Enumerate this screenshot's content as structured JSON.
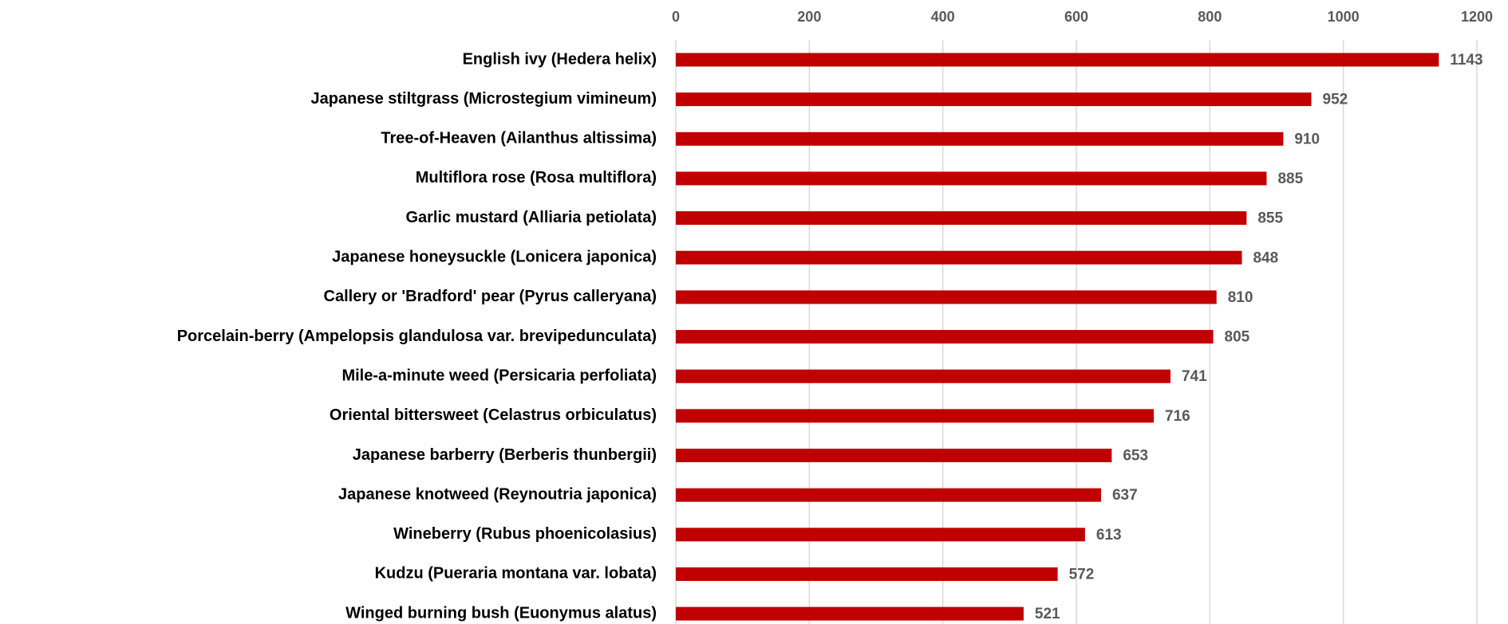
{
  "chart_data": {
    "type": "bar",
    "orientation": "horizontal",
    "categories": [
      "English ivy (Hedera helix)",
      "Japanese stiltgrass (Microstegium vimineum)",
      "Tree-of-Heaven (Ailanthus altissima)",
      "Multiflora rose (Rosa multiflora)",
      "Garlic mustard (Alliaria petiolata)",
      "Japanese honeysuckle (Lonicera japonica)",
      "Callery or 'Bradford' pear (Pyrus calleryana)",
      "Porcelain-berry (Ampelopsis glandulosa var. brevipedunculata)",
      "Mile-a-minute weed (Persicaria perfoliata)",
      "Oriental bittersweet (Celastrus orbiculatus)",
      "Japanese barberry (Berberis thunbergii)",
      "Japanese knotweed (Reynoutria japonica)",
      "Wineberry (Rubus phoenicolasius)",
      "Kudzu (Pueraria montana var. lobata)",
      "Winged burning bush (Euonymus alatus)"
    ],
    "values": [
      1143,
      952,
      910,
      885,
      855,
      848,
      810,
      805,
      741,
      716,
      653,
      637,
      613,
      572,
      521
    ],
    "color": "#c00000",
    "xlim": [
      0,
      1200
    ],
    "xticks": [
      0,
      200,
      400,
      600,
      800,
      1000,
      1200
    ],
    "grid": true
  }
}
